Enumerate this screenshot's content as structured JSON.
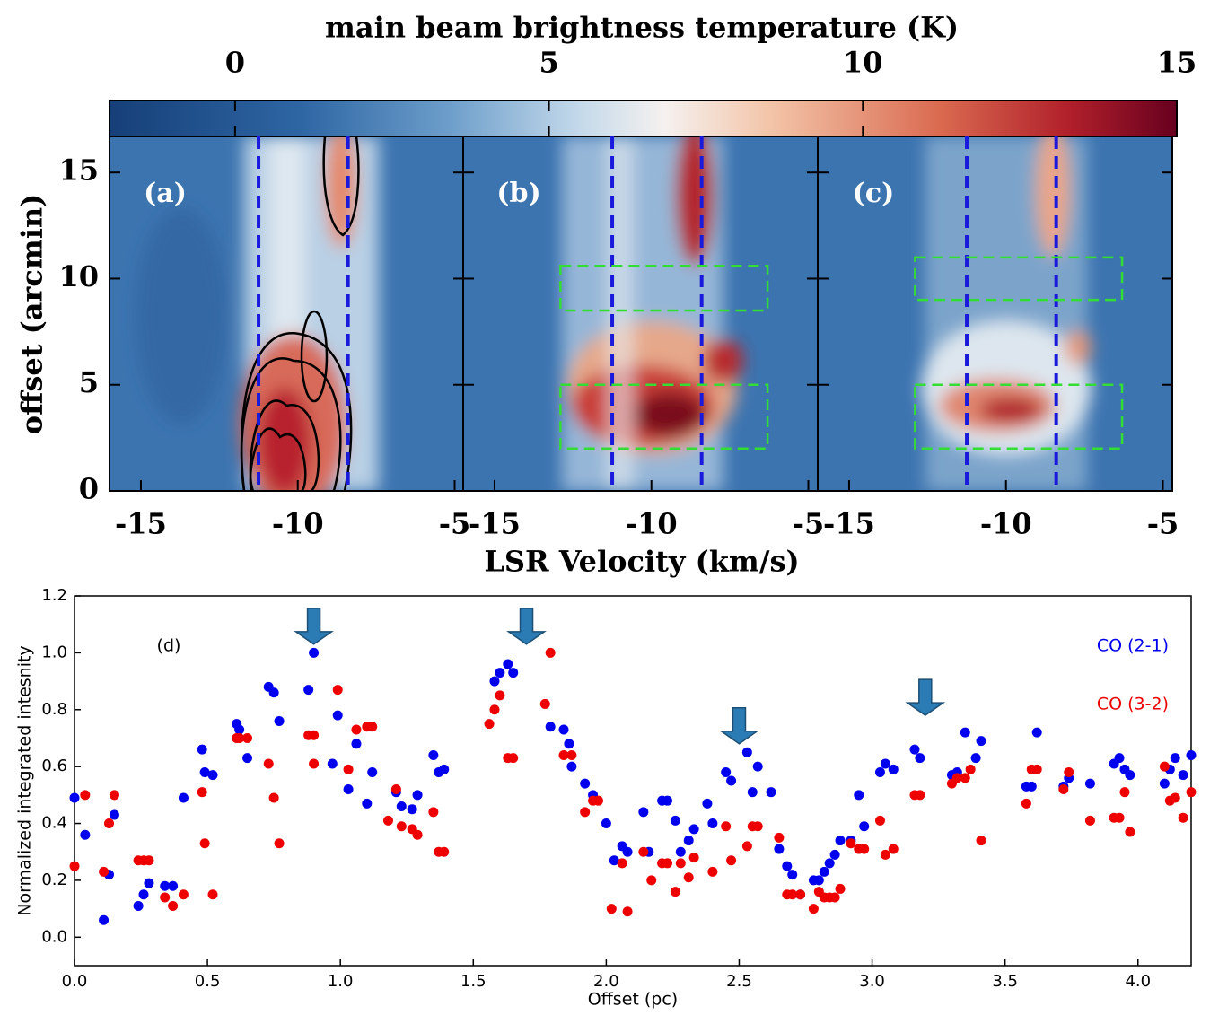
{
  "chart_data": [
    {
      "type": "pv-diagram",
      "colorbar": {
        "label": "main beam brightness temperature (K)",
        "lim": [
          -2,
          15
        ],
        "ticks": [
          0,
          5,
          10,
          15
        ]
      },
      "xlabel": "LSR Velocity (km/s)",
      "ylabel": "offset (arcmin)",
      "xlim": [
        -16,
        -4.7
      ],
      "xticks": [
        -15,
        -10,
        -5
      ],
      "ylim": [
        0,
        16.7
      ],
      "yticks": [
        0,
        5,
        10,
        15
      ],
      "vlines": [
        -11.25,
        -8.4
      ],
      "vline_color": "#1a1adc",
      "region_color": "#33dd33",
      "panels": [
        {
          "label": "(a)",
          "regions": []
        },
        {
          "label": "(b)",
          "regions": [
            [
              -12.9,
              -6.3,
              8.5,
              10.6
            ],
            [
              -12.9,
              -6.3,
              2,
              5
            ]
          ]
        },
        {
          "label": "(c)",
          "regions": [
            [
              -12.9,
              -6.3,
              9,
              11
            ],
            [
              -12.9,
              -6.3,
              2,
              5
            ]
          ]
        }
      ]
    },
    {
      "type": "scatter",
      "xlabel": "Offset (pc)",
      "ylabel": "Normalized integrated intesnity",
      "annotation": "(d)",
      "xlim": [
        0,
        4.2
      ],
      "ylim": [
        -0.1,
        1.2
      ],
      "xticks": [
        {
          "value": 0,
          "label": "0.0"
        },
        {
          "value": 0.5,
          "label": "0.5"
        },
        {
          "value": 1,
          "label": "1.0"
        },
        {
          "value": 1.5,
          "label": "1.5"
        },
        {
          "value": 2,
          "label": "2.0"
        },
        {
          "value": 2.5,
          "label": "2.5"
        },
        {
          "value": 3,
          "label": "3.0"
        },
        {
          "value": 3.5,
          "label": "3.5"
        },
        {
          "value": 4,
          "label": "4.0"
        }
      ],
      "yticks": [
        {
          "value": 0,
          "label": "0.0"
        },
        {
          "value": 0.2,
          "label": "0.2"
        },
        {
          "value": 0.4,
          "label": "0.4"
        },
        {
          "value": 0.6,
          "label": "0.6"
        },
        {
          "value": 0.8,
          "label": "0.8"
        },
        {
          "value": 1,
          "label": "1.0"
        },
        {
          "value": 1.2,
          "label": "1.2"
        }
      ],
      "legend": "upper right",
      "arrows": [
        {
          "x": 0.9,
          "y": 1.03
        },
        {
          "x": 1.7,
          "y": 1.03
        },
        {
          "x": 2.5,
          "y": 0.68
        },
        {
          "x": 3.2,
          "y": 0.78
        }
      ],
      "arrow_color": "#2b7bb5",
      "series": [
        {
          "name": "CO (2-1)",
          "color": "#0000ee",
          "x": [
            0,
            0.04,
            0.11,
            0.13,
            0.15,
            0.24,
            0.26,
            0.28,
            0.34,
            0.37,
            0.41,
            0.48,
            0.49,
            0.52,
            0.61,
            0.62,
            0.65,
            0.73,
            0.75,
            0.77,
            0.88,
            0.9,
            0.97,
            0.99,
            1.03,
            1.06,
            1.1,
            1.12,
            1.21,
            1.23,
            1.27,
            1.29,
            1.35,
            1.37,
            1.39,
            1.58,
            1.6,
            1.63,
            1.65,
            1.79,
            1.84,
            1.86,
            1.87,
            1.92,
            1.95,
            2,
            2.03,
            2.06,
            2.08,
            2.14,
            2.16,
            2.21,
            2.23,
            2.26,
            2.28,
            2.31,
            2.33,
            2.38,
            2.4,
            2.45,
            2.47,
            2.53,
            2.55,
            2.57,
            2.62,
            2.65,
            2.68,
            2.7,
            2.73,
            2.78,
            2.8,
            2.82,
            2.84,
            2.86,
            2.88,
            2.92,
            2.95,
            2.97,
            3.03,
            3.05,
            3.08,
            3.16,
            3.18,
            3.3,
            3.32,
            3.35,
            3.39,
            3.41,
            3.58,
            3.6,
            3.62,
            3.72,
            3.74,
            3.82,
            3.91,
            3.93,
            3.95,
            3.97,
            4.1,
            4.12,
            4.14,
            4.17,
            4.2
          ],
          "values": [
            0.49,
            0.36,
            0.06,
            0.22,
            0.43,
            0.11,
            0.15,
            0.19,
            0.18,
            0.18,
            0.49,
            0.66,
            0.58,
            0.57,
            0.75,
            0.73,
            0.63,
            0.88,
            0.86,
            0.76,
            0.87,
            1.0,
            0.61,
            0.78,
            0.52,
            0.68,
            0.47,
            0.58,
            0.51,
            0.46,
            0.45,
            0.5,
            0.64,
            0.58,
            0.59,
            0.9,
            0.93,
            0.96,
            0.93,
            0.74,
            0.73,
            0.68,
            0.6,
            0.54,
            0.5,
            0.4,
            0.27,
            0.32,
            0.3,
            0.44,
            0.3,
            0.48,
            0.48,
            0.41,
            0.3,
            0.34,
            0.38,
            0.47,
            0.4,
            0.58,
            0.55,
            0.65,
            0.51,
            0.6,
            0.51,
            0.31,
            0.25,
            0.22,
            0.15,
            0.2,
            0.2,
            0.23,
            0.26,
            0.29,
            0.34,
            0.34,
            0.5,
            0.39,
            0.58,
            0.61,
            0.59,
            0.66,
            0.63,
            0.57,
            0.58,
            0.72,
            0.63,
            0.69,
            0.53,
            0.53,
            0.72,
            0.53,
            0.56,
            0.54,
            0.61,
            0.63,
            0.59,
            0.57,
            0.54,
            0.59,
            0.63,
            0.57,
            0.64
          ]
        },
        {
          "name": "CO (3-2)",
          "color": "#ee0000",
          "x": [
            0,
            0.04,
            0.11,
            0.13,
            0.15,
            0.24,
            0.26,
            0.28,
            0.34,
            0.37,
            0.41,
            0.48,
            0.49,
            0.52,
            0.61,
            0.62,
            0.65,
            0.73,
            0.75,
            0.77,
            0.88,
            0.9,
            0.9,
            0.99,
            1.03,
            1.06,
            1.1,
            1.12,
            1.18,
            1.21,
            1.23,
            1.27,
            1.29,
            1.35,
            1.37,
            1.39,
            1.56,
            1.58,
            1.6,
            1.63,
            1.65,
            1.77,
            1.79,
            1.84,
            1.87,
            1.92,
            1.95,
            1.97,
            2.02,
            2.06,
            2.08,
            2.14,
            2.17,
            2.21,
            2.23,
            2.26,
            2.28,
            2.31,
            2.33,
            2.4,
            2.45,
            2.47,
            2.53,
            2.55,
            2.57,
            2.65,
            2.68,
            2.7,
            2.73,
            2.78,
            2.8,
            2.82,
            2.84,
            2.86,
            2.88,
            2.92,
            2.95,
            2.97,
            3.03,
            3.05,
            3.08,
            3.16,
            3.18,
            3.3,
            3.32,
            3.35,
            3.37,
            3.41,
            3.58,
            3.6,
            3.62,
            3.72,
            3.74,
            3.82,
            3.91,
            3.93,
            3.95,
            3.97,
            4.1,
            4.12,
            4.14,
            4.17,
            4.2
          ],
          "values": [
            0.25,
            0.5,
            0.23,
            0.4,
            0.5,
            0.27,
            0.27,
            0.27,
            0.14,
            0.11,
            0.15,
            0.51,
            0.33,
            0.15,
            0.7,
            0.7,
            0.7,
            0.61,
            0.49,
            0.33,
            0.71,
            0.71,
            0.61,
            0.87,
            0.59,
            0.73,
            0.74,
            0.74,
            0.41,
            0.52,
            0.39,
            0.38,
            0.36,
            0.44,
            0.3,
            0.3,
            0.75,
            0.8,
            0.85,
            0.63,
            0.63,
            0.82,
            1.0,
            0.64,
            0.64,
            0.44,
            0.48,
            0.48,
            0.1,
            0.26,
            0.09,
            0.3,
            0.2,
            0.26,
            0.26,
            0.16,
            0.26,
            0.21,
            0.28,
            0.23,
            0.39,
            0.27,
            0.32,
            0.39,
            0.39,
            0.35,
            0.15,
            0.15,
            0.15,
            0.1,
            0.16,
            0.14,
            0.14,
            0.14,
            0.17,
            0.33,
            0.31,
            0.31,
            0.41,
            0.29,
            0.31,
            0.5,
            0.5,
            0.54,
            0.56,
            0.56,
            0.59,
            0.34,
            0.47,
            0.59,
            0.59,
            0.52,
            0.58,
            0.41,
            0.42,
            0.42,
            0.51,
            0.37,
            0.6,
            0.48,
            0.49,
            0.42,
            0.51
          ]
        }
      ]
    }
  ]
}
